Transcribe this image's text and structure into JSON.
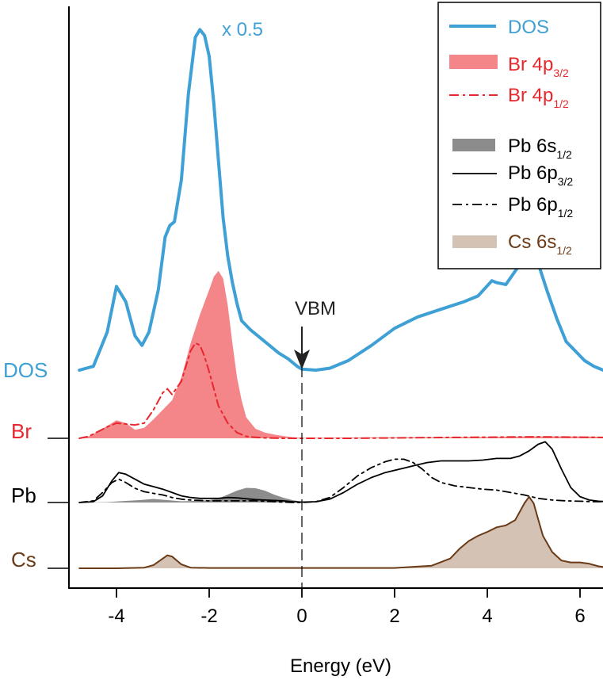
{
  "chart_data": {
    "type": "line",
    "xlabel": "Energy (eV)",
    "xlim": [
      -5,
      6.6
    ],
    "xticks": [
      -4,
      -2,
      0,
      2,
      4,
      6
    ],
    "xtick_labels": [
      "-4",
      "-2",
      "0",
      "2",
      "4",
      "6"
    ],
    "scale_annotation": "x 0.5",
    "vbm_label": "VBM",
    "vbm_energy": 0,
    "colors": {
      "dos": "#3fa0d6",
      "br": "#e8272d",
      "br_fill": "#f4868a",
      "pb": "#000000",
      "pb_fill": "#8c8c8c",
      "cs": "#6b3a17",
      "cs_fill": "#d4c2b4"
    },
    "row_labels": [
      {
        "key": "dos",
        "text": "DOS"
      },
      {
        "key": "br",
        "text": "Br"
      },
      {
        "key": "pb",
        "text": "Pb"
      },
      {
        "key": "cs",
        "text": "Cs"
      }
    ],
    "legend": {
      "position": "top-right",
      "entries": [
        {
          "key": "dos",
          "text": "DOS",
          "sub": ""
        },
        {
          "key": "br32",
          "text": "Br 4p",
          "sub": "3/2"
        },
        {
          "key": "br12",
          "text": "Br 4p",
          "sub": "1/2"
        },
        {
          "key": "pb6s",
          "text": "Pb 6s",
          "sub": "1/2"
        },
        {
          "key": "pb6p32",
          "text": "Pb 6p",
          "sub": "3/2"
        },
        {
          "key": "pb6p12",
          "text": "Pb 6p",
          "sub": "1/2"
        },
        {
          "key": "cs6s",
          "text": "Cs 6s",
          "sub": "1/2"
        }
      ]
    },
    "series": [
      {
        "key": "dos",
        "style": "thick-line",
        "x": [
          -4.8,
          -4.5,
          -4.2,
          -4.0,
          -3.8,
          -3.6,
          -3.45,
          -3.3,
          -3.1,
          -2.95,
          -2.85,
          -2.75,
          -2.6,
          -2.45,
          -2.3,
          -2.2,
          -2.1,
          -2.0,
          -1.9,
          -1.8,
          -1.7,
          -1.6,
          -1.5,
          -1.4,
          -1.3,
          -1.1,
          -0.9,
          -0.7,
          -0.5,
          -0.3,
          -0.1,
          0.0,
          0.3,
          0.6,
          1.0,
          1.5,
          2.0,
          2.5,
          3.0,
          3.5,
          3.8,
          4.1,
          4.2,
          4.4,
          4.6,
          4.8,
          4.95,
          5.1,
          5.3,
          5.5,
          5.7,
          5.9,
          6.1,
          6.3,
          6.6
        ],
        "y": [
          0.0,
          0.2,
          2.0,
          4.4,
          3.6,
          1.8,
          1.3,
          2.0,
          4.2,
          7.0,
          7.6,
          7.8,
          10.0,
          14.5,
          17.5,
          17.9,
          17.6,
          16.5,
          14.0,
          11.0,
          8.0,
          6.0,
          4.6,
          3.5,
          2.6,
          2.1,
          1.7,
          1.3,
          0.9,
          0.6,
          0.2,
          0.05,
          0.0,
          0.1,
          0.5,
          1.3,
          2.2,
          2.8,
          3.2,
          3.6,
          3.9,
          4.7,
          4.6,
          4.5,
          5.2,
          5.9,
          6.1,
          5.6,
          4.1,
          2.7,
          1.5,
          1.0,
          0.5,
          0.2,
          -0.1
        ]
      },
      {
        "key": "br32",
        "style": "fill",
        "x": [
          -4.8,
          -4.6,
          -4.4,
          -4.2,
          -4.0,
          -3.8,
          -3.6,
          -3.4,
          -3.2,
          -3.0,
          -2.8,
          -2.6,
          -2.4,
          -2.2,
          -2.0,
          -1.9,
          -1.8,
          -1.7,
          -1.6,
          -1.5,
          -1.4,
          -1.3,
          -1.2,
          -1.0,
          -0.8,
          -0.6,
          -0.4,
          -0.2,
          0.0,
          0.5,
          1.0,
          2.0,
          3.0,
          4.0,
          5.0,
          6.0,
          6.6
        ],
        "y": [
          0.0,
          0.1,
          0.35,
          0.65,
          0.95,
          0.8,
          0.45,
          0.55,
          1.0,
          1.5,
          2.0,
          3.2,
          5.0,
          6.5,
          7.8,
          8.5,
          8.8,
          8.4,
          7.0,
          5.0,
          3.2,
          2.0,
          1.1,
          0.5,
          0.3,
          0.2,
          0.12,
          0.06,
          0.02,
          0.03,
          0.04,
          0.05,
          0.06,
          0.07,
          0.1,
          0.1,
          0.08
        ]
      },
      {
        "key": "br12",
        "style": "dashdot",
        "x": [
          -4.8,
          -4.6,
          -4.4,
          -4.2,
          -4.0,
          -3.8,
          -3.6,
          -3.4,
          -3.2,
          -3.0,
          -2.9,
          -2.8,
          -2.6,
          -2.4,
          -2.3,
          -2.2,
          -2.1,
          -2.0,
          -1.9,
          -1.8,
          -1.6,
          -1.4,
          -1.2,
          -1.0,
          -0.8,
          -0.6,
          -0.4,
          -0.2,
          0.0,
          1.0,
          2.0,
          3.0,
          4.0,
          5.0,
          6.0,
          6.6
        ],
        "y": [
          0.0,
          0.1,
          0.35,
          0.6,
          0.8,
          0.75,
          0.7,
          0.8,
          1.5,
          2.4,
          2.6,
          2.3,
          3.0,
          4.6,
          5.0,
          4.9,
          4.3,
          3.5,
          2.6,
          1.7,
          0.8,
          0.3,
          0.1,
          0.05,
          0.02,
          0.01,
          0.0,
          0.0,
          0.0,
          0.0,
          0.02,
          0.04,
          0.06,
          0.08,
          0.06,
          0.04
        ]
      },
      {
        "key": "pb6s",
        "style": "fill",
        "x": [
          -4.8,
          -4.2,
          -3.8,
          -3.5,
          -3.2,
          -2.9,
          -2.6,
          -2.3,
          -2.0,
          -1.8,
          -1.6,
          -1.4,
          -1.2,
          -1.0,
          -0.8,
          -0.6,
          -0.4,
          -0.2,
          0.0,
          0.5,
          1.0,
          2.0,
          3.0,
          4.0,
          5.0,
          6.0,
          6.6
        ],
        "y": [
          0.0,
          0.05,
          0.2,
          0.3,
          0.45,
          0.3,
          0.15,
          0.2,
          0.3,
          0.5,
          1.0,
          1.5,
          1.85,
          1.8,
          1.5,
          1.0,
          0.6,
          0.3,
          0.1,
          0.0,
          0.0,
          0.0,
          0.0,
          0.0,
          0.0,
          0.0,
          0.0
        ]
      },
      {
        "key": "pb6p32",
        "style": "line",
        "x": [
          -4.8,
          -4.5,
          -4.3,
          -4.1,
          -3.95,
          -3.8,
          -3.6,
          -3.4,
          -3.2,
          -3.0,
          -2.8,
          -2.6,
          -2.4,
          -2.2,
          -2.0,
          -1.8,
          -1.6,
          -1.4,
          -1.2,
          -1.0,
          -0.8,
          -0.6,
          -0.4,
          -0.2,
          0.0,
          0.3,
          0.6,
          0.9,
          1.2,
          1.5,
          1.8,
          2.1,
          2.4,
          2.7,
          3.0,
          3.3,
          3.6,
          3.9,
          4.2,
          4.5,
          4.7,
          4.9,
          5.1,
          5.25,
          5.4,
          5.6,
          5.8,
          6.0,
          6.2,
          6.4,
          6.6
        ],
        "y": [
          0.0,
          0.1,
          0.8,
          2.6,
          3.6,
          3.4,
          2.8,
          2.2,
          1.9,
          1.6,
          1.2,
          0.8,
          0.6,
          0.5,
          0.5,
          0.5,
          0.6,
          0.55,
          0.45,
          0.35,
          0.3,
          0.25,
          0.2,
          0.1,
          0.05,
          0.1,
          0.4,
          1.2,
          2.2,
          3.0,
          3.6,
          4.0,
          4.4,
          4.8,
          5.0,
          5.0,
          5.0,
          5.1,
          5.3,
          5.3,
          5.6,
          6.2,
          7.0,
          7.3,
          6.4,
          4.0,
          1.8,
          0.7,
          0.3,
          0.15,
          0.1
        ]
      },
      {
        "key": "pb6p12",
        "style": "dashdot",
        "x": [
          -4.8,
          -4.5,
          -4.3,
          -4.1,
          -3.95,
          -3.8,
          -3.6,
          -3.4,
          -3.2,
          -3.0,
          -2.8,
          -2.6,
          -2.4,
          -2.2,
          -2.0,
          -1.8,
          -1.6,
          -1.4,
          -1.2,
          -1.0,
          -0.8,
          -0.6,
          -0.4,
          -0.2,
          0.0,
          0.3,
          0.6,
          0.9,
          1.2,
          1.5,
          1.8,
          2.0,
          2.2,
          2.4,
          2.6,
          2.8,
          3.0,
          3.3,
          3.6,
          3.9,
          4.2,
          4.5,
          4.8,
          5.1,
          5.4,
          5.7,
          6.0,
          6.3,
          6.6
        ],
        "y": [
          0.0,
          0.2,
          1.2,
          2.4,
          2.8,
          2.4,
          1.7,
          1.3,
          1.1,
          0.9,
          0.6,
          0.4,
          0.3,
          0.25,
          0.2,
          0.2,
          0.2,
          0.2,
          0.2,
          0.2,
          0.15,
          0.1,
          0.05,
          0.0,
          0.0,
          0.1,
          0.6,
          1.8,
          3.2,
          4.2,
          4.9,
          5.2,
          5.2,
          4.8,
          4.0,
          3.0,
          2.4,
          2.0,
          1.8,
          1.6,
          1.5,
          1.2,
          0.9,
          0.5,
          0.3,
          0.2,
          0.15,
          0.1,
          0.1
        ]
      },
      {
        "key": "cs6s",
        "style": "fill",
        "x": [
          -4.8,
          -4.0,
          -3.4,
          -3.2,
          -3.0,
          -2.9,
          -2.8,
          -2.6,
          -2.4,
          -2.0,
          -1.0,
          0.0,
          1.0,
          2.0,
          2.8,
          3.2,
          3.4,
          3.6,
          3.8,
          4.0,
          4.2,
          4.4,
          4.6,
          4.8,
          4.9,
          5.0,
          5.1,
          5.2,
          5.4,
          5.6,
          5.8,
          6.0,
          6.2,
          6.4,
          6.6
        ],
        "y": [
          0.0,
          0.0,
          0.1,
          0.5,
          1.5,
          2.0,
          1.8,
          0.6,
          0.1,
          0.05,
          0.05,
          0.05,
          0.05,
          0.05,
          0.4,
          1.5,
          3.0,
          4.2,
          5.0,
          5.6,
          6.3,
          6.6,
          7.4,
          10.0,
          11.0,
          10.0,
          7.5,
          5.0,
          2.5,
          1.2,
          0.9,
          0.9,
          0.7,
          0.3,
          0.1
        ]
      },
      {
        "key": "cs6s_line",
        "style": "line",
        "x": [
          -4.8,
          -4.0,
          -3.4,
          -3.2,
          -3.0,
          -2.9,
          -2.8,
          -2.6,
          -2.4,
          -2.0,
          -1.0,
          0.0,
          1.0,
          2.0,
          2.8,
          3.2,
          3.4,
          3.6,
          3.8,
          4.0,
          4.2,
          4.4,
          4.6,
          4.8,
          4.9,
          5.0,
          5.1,
          5.2,
          5.4,
          5.6,
          5.8,
          6.0,
          6.2,
          6.4,
          6.6
        ],
        "y": [
          0.0,
          0.0,
          0.1,
          0.5,
          1.5,
          2.0,
          1.8,
          0.6,
          0.1,
          0.05,
          0.05,
          0.05,
          0.05,
          0.05,
          0.4,
          1.5,
          3.0,
          4.2,
          5.0,
          5.6,
          6.3,
          6.6,
          7.4,
          10.0,
          11.0,
          10.0,
          7.5,
          5.0,
          2.5,
          1.2,
          0.9,
          0.9,
          0.7,
          0.3,
          0.1
        ]
      }
    ]
  }
}
